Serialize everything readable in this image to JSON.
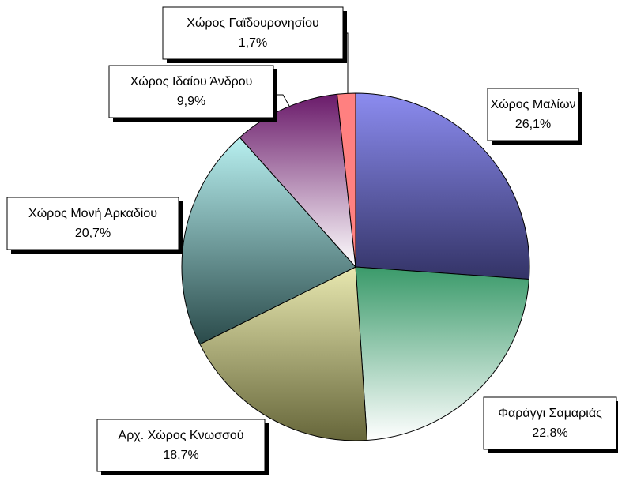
{
  "chart_data": {
    "type": "pie",
    "categories": [
      "Χώρος Μαλίων",
      "Φαράγγι Σαμαριάς",
      "Αρχ. Χώρος Κνωσσού",
      "Χώρος Μονή Αρκαδίου",
      "Χώρος Ιδαίου Άνδρου",
      "Χώρος Γαϊδουρονησίου"
    ],
    "values": [
      26.1,
      22.8,
      18.7,
      20.7,
      9.9,
      1.7
    ],
    "value_labels": [
      "26,1%",
      "22,8%",
      "18,7%",
      "20,7%",
      "9,9%",
      "1,7%"
    ],
    "colors": [
      "#8c8cf0",
      "#3a9a6a",
      "#e8e8b0",
      "#b8f0f0",
      "#6a1a6a",
      "#ff8080"
    ]
  }
}
